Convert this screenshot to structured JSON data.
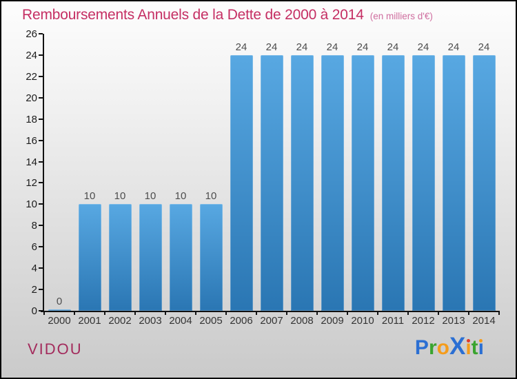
{
  "title": {
    "text": "Remboursements Annuels de la Dette de 2000 à 2014",
    "subtitle": "(en milliers d'€)"
  },
  "colors": {
    "title": "#c52e63",
    "subtitle": "#cf6d9f",
    "axis": "#111111",
    "bar_top": "#58a8e2",
    "bar_bottom": "#2a76b3",
    "value_label": "#4d4d4d",
    "tick_label": "#1c1c1c",
    "footer_name": "#a32b5c"
  },
  "chart_data": {
    "type": "bar",
    "title": "Remboursements Annuels de la Dette de 2000 à 2014",
    "subtitle": "(en milliers d'€)",
    "categories": [
      "2000",
      "2001",
      "2002",
      "2003",
      "2004",
      "2005",
      "2006",
      "2007",
      "2008",
      "2009",
      "2010",
      "2011",
      "2012",
      "2013",
      "2014"
    ],
    "values": [
      0,
      10,
      10,
      10,
      10,
      10,
      24,
      24,
      24,
      24,
      24,
      24,
      24,
      24,
      24
    ],
    "xlabel": "",
    "ylabel": "",
    "ylim": [
      0,
      26
    ],
    "ytick_step": 2,
    "grid": false,
    "legend": "none",
    "value_labels": true
  },
  "footer": {
    "client_name": "VIDOU",
    "logo": {
      "brand": "Proxiti",
      "letters": [
        {
          "ch": "P",
          "color": "#2b6fd3"
        },
        {
          "ch": "r",
          "color": "#3aa42f"
        },
        {
          "ch": "o",
          "color": "#f59c1b"
        },
        {
          "ch": "X",
          "color": "#2b6fd3",
          "big": true
        },
        {
          "ch": "i",
          "color": "#f59c1b",
          "dot_color": "#e03a2a"
        },
        {
          "ch": "t",
          "color": "#3aa42f"
        },
        {
          "ch": "i",
          "color": "#2b6fd3",
          "dot_color": "#f59c1b"
        }
      ]
    }
  }
}
